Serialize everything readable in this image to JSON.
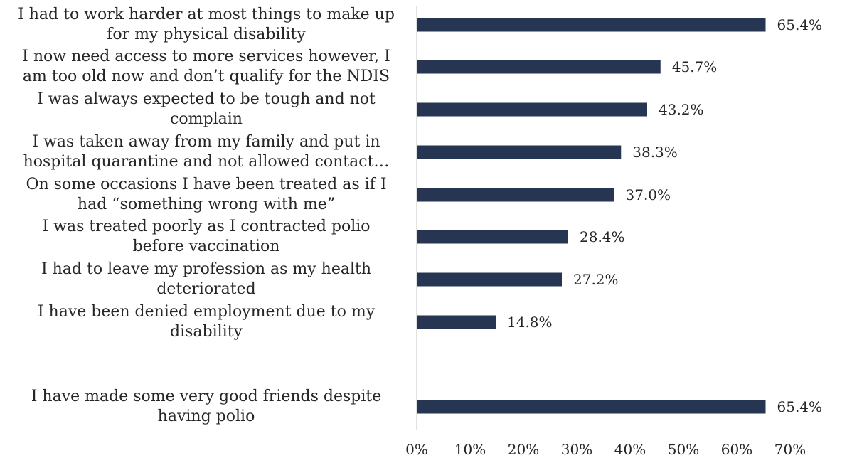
{
  "colors": {
    "bar": "#253552",
    "axis": "#d9d9d9",
    "text": "#262626"
  },
  "chart_data": {
    "type": "bar",
    "orientation": "horizontal",
    "title": "",
    "xlabel": "",
    "ylabel": "",
    "xlim": [
      0,
      70
    ],
    "grid": false,
    "legend": "none",
    "ticks": [
      "0%",
      "10%",
      "20%",
      "30%",
      "40%",
      "50%",
      "60%",
      "70%"
    ],
    "categories": [
      [
        "I had to work harder at most things to make up",
        "for my physical disability"
      ],
      [
        "I now need access to more services however, I",
        "am too old now and don’t qualify for the NDIS"
      ],
      [
        "I was always expected to be tough and not",
        "complain"
      ],
      [
        "I was taken away from my family and put in",
        "hospital quarantine and not allowed contact…"
      ],
      [
        "On some occasions I have been treated as if I",
        "had “something wrong with me”"
      ],
      [
        "I was treated poorly as I contracted polio",
        "before vaccination"
      ],
      [
        "I had to leave my profession as my health",
        "deteriorated"
      ],
      [
        "I have been denied employment due to my",
        "disability"
      ],
      [
        "I have made some very good friends despite",
        "having polio"
      ]
    ],
    "values": [
      65.4,
      45.7,
      43.2,
      38.3,
      37.0,
      28.4,
      27.2,
      14.8,
      65.4
    ],
    "value_labels": [
      "65.4%",
      "45.7%",
      "43.2%",
      "38.3%",
      "37.0%",
      "28.4%",
      "27.2%",
      "14.8%",
      "65.4%"
    ]
  }
}
